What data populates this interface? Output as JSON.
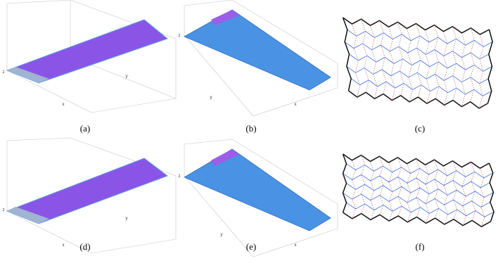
{
  "panels": [
    {
      "label": "(a)",
      "axes": [
        "x",
        "y",
        "z"
      ]
    },
    {
      "label": "(b)",
      "axes": [
        "x",
        "y",
        "z"
      ]
    },
    {
      "label": "(c)"
    },
    {
      "label": "(d)",
      "axes": [
        "x",
        "y",
        "z"
      ]
    },
    {
      "label": "(e)",
      "axes": [
        "x",
        "y",
        "z"
      ]
    },
    {
      "label": "(f)"
    }
  ]
}
